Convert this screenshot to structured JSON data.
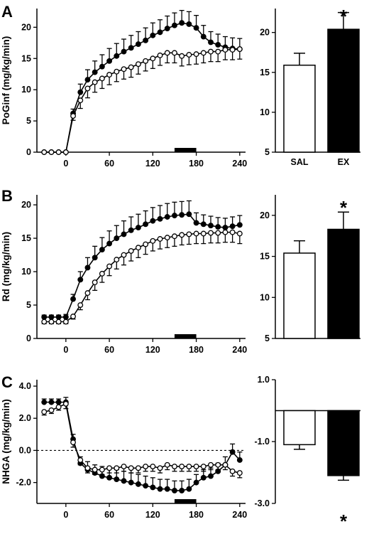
{
  "chart_data": [
    {
      "panel": "A",
      "type": "line",
      "ylabel": "PoGinf (mg/kg/min)",
      "xticks": [
        0,
        60,
        120,
        180,
        240
      ],
      "yticks": [
        0,
        5,
        10,
        15,
        20
      ],
      "xlim": [
        -40,
        248
      ],
      "ylim": [
        0,
        23
      ],
      "x": [
        -30,
        -20,
        -10,
        0,
        10,
        20,
        30,
        40,
        50,
        60,
        70,
        80,
        90,
        100,
        110,
        120,
        130,
        140,
        150,
        160,
        170,
        180,
        190,
        200,
        210,
        220,
        230,
        240
      ],
      "series": [
        {
          "marker": "filled",
          "values": [
            0,
            0,
            0,
            0,
            6.2,
            9.6,
            11.6,
            12.8,
            13.7,
            14.6,
            15.4,
            16.1,
            16.7,
            17.3,
            17.9,
            18.7,
            19.2,
            19.8,
            20.3,
            20.7,
            20.5,
            19.9,
            18.5,
            17.6,
            17.2,
            16.8,
            16.6,
            16.5
          ],
          "err": [
            0,
            0,
            0,
            0,
            0.7,
            1.3,
            1.6,
            1.8,
            1.9,
            2.0,
            2.0,
            2.0,
            2.0,
            2.0,
            2.0,
            2.0,
            2.0,
            2.0,
            2.0,
            2.0,
            2.0,
            2.0,
            1.8,
            1.7,
            1.7,
            1.7,
            1.7,
            1.7
          ]
        },
        {
          "marker": "open",
          "values": [
            0,
            0,
            0,
            0,
            5.8,
            8.3,
            10.2,
            11.2,
            11.8,
            12.4,
            12.9,
            13.3,
            13.6,
            14.1,
            14.6,
            15.0,
            15.5,
            15.9,
            15.9,
            15.4,
            15.6,
            15.7,
            15.9,
            16.1,
            16.1,
            16.4,
            16.4,
            16.5
          ],
          "err": [
            0,
            0,
            0,
            0,
            0.7,
            1.3,
            1.5,
            1.6,
            1.6,
            1.6,
            1.6,
            1.6,
            1.6,
            1.6,
            1.6,
            1.6,
            1.6,
            1.6,
            1.6,
            1.6,
            1.6,
            1.6,
            1.6,
            1.6,
            1.6,
            1.6,
            1.6,
            1.6
          ]
        }
      ],
      "bar_chart": {
        "categories": [
          "SAL",
          "EX"
        ],
        "values": [
          15.9,
          20.4
        ],
        "err": [
          1.5,
          2.1
        ],
        "yticks": [
          5,
          10,
          15,
          20
        ],
        "ylim": [
          5,
          23
        ],
        "annotation": "*"
      }
    },
    {
      "panel": "B",
      "type": "line",
      "ylabel": "Rd (mg/kg/min)",
      "xticks": [
        0,
        60,
        120,
        180,
        240
      ],
      "yticks": [
        0,
        5,
        10,
        15,
        20
      ],
      "xlim": [
        -40,
        248
      ],
      "ylim": [
        0,
        21.5
      ],
      "x": [
        -30,
        -20,
        -10,
        0,
        10,
        20,
        30,
        40,
        50,
        60,
        70,
        80,
        90,
        100,
        110,
        120,
        130,
        140,
        150,
        160,
        170,
        180,
        190,
        200,
        210,
        220,
        230,
        240
      ],
      "series": [
        {
          "marker": "filled",
          "values": [
            3.2,
            3.2,
            3.2,
            3.2,
            5.9,
            8.8,
            10.6,
            12.1,
            13.3,
            14.2,
            15.0,
            15.6,
            16.2,
            16.6,
            17.1,
            17.6,
            17.9,
            18.2,
            18.4,
            18.5,
            18.6,
            17.3,
            17.1,
            16.9,
            16.7,
            16.6,
            16.8,
            17.0
          ],
          "err": [
            0.3,
            0.3,
            0.3,
            0.4,
            0.7,
            1.2,
            1.5,
            1.7,
            1.8,
            1.9,
            1.9,
            2.0,
            2.0,
            2.0,
            2.0,
            2.0,
            2.0,
            2.0,
            2.0,
            2.0,
            2.0,
            1.5,
            1.4,
            1.4,
            1.4,
            1.4,
            1.4,
            1.4
          ]
        },
        {
          "marker": "open",
          "values": [
            2.5,
            2.5,
            2.5,
            2.5,
            3.3,
            5.0,
            6.8,
            8.4,
            9.7,
            10.8,
            11.8,
            12.5,
            13.1,
            13.6,
            14.1,
            14.6,
            14.9,
            15.1,
            15.3,
            15.5,
            15.6,
            15.7,
            15.7,
            15.8,
            15.8,
            15.9,
            15.9,
            15.7
          ],
          "err": [
            0.3,
            0.3,
            0.3,
            0.3,
            0.4,
            0.7,
            1.0,
            1.2,
            1.3,
            1.4,
            1.4,
            1.5,
            1.5,
            1.5,
            1.5,
            1.5,
            1.5,
            1.5,
            1.5,
            1.5,
            1.5,
            1.5,
            1.5,
            1.5,
            1.5,
            1.5,
            1.5,
            1.5
          ]
        }
      ],
      "bar_chart": {
        "categories": [
          "SAL",
          "EX"
        ],
        "values": [
          15.4,
          18.3
        ],
        "err": [
          1.5,
          2.1
        ],
        "yticks": [
          5,
          10,
          15,
          20
        ],
        "ylim": [
          5,
          22.5
        ],
        "annotation": "*"
      }
    },
    {
      "panel": "C",
      "type": "line",
      "ylabel": "NHGA (mg/kg/min)",
      "xticks": [
        0,
        60,
        120,
        180,
        240
      ],
      "yticks": [
        "4.0",
        "2.0",
        "0.0",
        "-2.0"
      ],
      "ytick_values": [
        4,
        2,
        0,
        -2
      ],
      "xlim": [
        -40,
        248
      ],
      "ylim": [
        -3.3,
        4.4
      ],
      "reference_line": 0,
      "x": [
        -30,
        -20,
        -10,
        0,
        10,
        20,
        30,
        40,
        50,
        60,
        70,
        80,
        90,
        100,
        110,
        120,
        130,
        140,
        150,
        160,
        170,
        180,
        190,
        200,
        210,
        220,
        230,
        240
      ],
      "series": [
        {
          "marker": "filled",
          "values": [
            3.0,
            3.0,
            3.0,
            3.0,
            0.7,
            -0.8,
            -1.2,
            -1.4,
            -1.6,
            -1.7,
            -1.8,
            -1.9,
            -2.0,
            -2.1,
            -2.2,
            -2.3,
            -2.4,
            -2.4,
            -2.5,
            -2.5,
            -2.4,
            -2.0,
            -1.7,
            -1.6,
            -1.3,
            -0.9,
            -0.1,
            -0.6
          ],
          "err": [
            0.2,
            0.2,
            0.2,
            0.3,
            0.3,
            0.4,
            0.5,
            0.5,
            0.6,
            0.6,
            0.6,
            0.6,
            0.6,
            0.6,
            0.6,
            0.6,
            0.6,
            0.6,
            0.6,
            0.6,
            0.6,
            0.5,
            0.5,
            0.5,
            0.5,
            0.5,
            0.5,
            0.5
          ]
        },
        {
          "marker": "open",
          "values": [
            2.4,
            2.5,
            2.7,
            2.9,
            0.5,
            -0.6,
            -1.1,
            -1.2,
            -1.2,
            -1.1,
            -1.1,
            -1.0,
            -1.1,
            -1.1,
            -1.0,
            -1.0,
            -1.1,
            -0.9,
            -1.0,
            -1.0,
            -1.0,
            -1.0,
            -1.0,
            -0.9,
            -0.9,
            -0.9,
            -1.3,
            -1.4
          ],
          "err": [
            0.2,
            0.2,
            0.2,
            0.3,
            0.3,
            0.3,
            0.3,
            0.3,
            0.3,
            0.3,
            0.3,
            0.3,
            0.3,
            0.3,
            0.3,
            0.3,
            0.3,
            0.3,
            0.3,
            0.3,
            0.3,
            0.3,
            0.3,
            0.3,
            0.3,
            0.3,
            0.3,
            0.3
          ]
        }
      ],
      "bar_chart": {
        "categories": [
          "",
          ""
        ],
        "values": [
          -1.1,
          -2.1
        ],
        "err": [
          0.15,
          0.15
        ],
        "yticks": [
          "1.0",
          "-1.0",
          "-3.0"
        ],
        "ytick_values": [
          1,
          -1,
          -3
        ],
        "ylim": [
          -3.0,
          1.0
        ],
        "annotation": "*"
      }
    }
  ]
}
